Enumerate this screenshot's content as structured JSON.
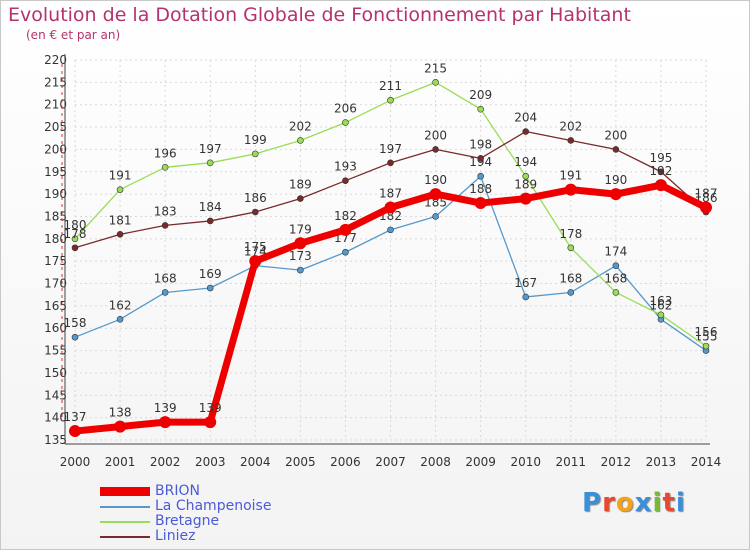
{
  "header": {
    "title": "Evolution de la Dotation Globale de Fonctionnement par Habitant",
    "subtitle": "(en € et par an)"
  },
  "logo": {
    "text": "Proxiti",
    "colors": [
      "#3b8fd8",
      "#e8492c",
      "#f3a21b",
      "#3b8fd8",
      "#79b83a",
      "#e8492c",
      "#3b8fd8"
    ]
  },
  "chart_data": {
    "type": "line",
    "x": [
      "2000",
      "2001",
      "2002",
      "2003",
      "2004",
      "2005",
      "2006",
      "2007",
      "2008",
      "2009",
      "2010",
      "2011",
      "2012",
      "2013",
      "2014"
    ],
    "ylim": [
      135,
      220
    ],
    "yticks": [
      135,
      140,
      145,
      150,
      155,
      160,
      165,
      170,
      175,
      180,
      185,
      190,
      195,
      200,
      205,
      210,
      215,
      220
    ],
    "grid": true,
    "legend_position": "bottom-left",
    "series": [
      {
        "name": "BRION",
        "color": "#ee0000",
        "values": [
          137,
          138,
          139,
          139,
          175,
          179,
          182,
          187,
          190,
          188,
          189,
          191,
          190,
          192,
          187
        ]
      },
      {
        "name": "La Champenoise",
        "color": "#5599cc",
        "values": [
          158,
          162,
          168,
          169,
          174,
          173,
          177,
          182,
          185,
          194,
          167,
          168,
          174,
          162,
          155
        ]
      },
      {
        "name": "Bretagne",
        "color": "#99dd55",
        "values": [
          180,
          191,
          196,
          197,
          199,
          202,
          206,
          211,
          215,
          209,
          194,
          178,
          168,
          163,
          156
        ]
      },
      {
        "name": "Liniez",
        "color": "#7a2a2a",
        "values": [
          178,
          181,
          183,
          184,
          186,
          189,
          193,
          197,
          200,
          198,
          204,
          202,
          200,
          195,
          186
        ]
      }
    ]
  }
}
